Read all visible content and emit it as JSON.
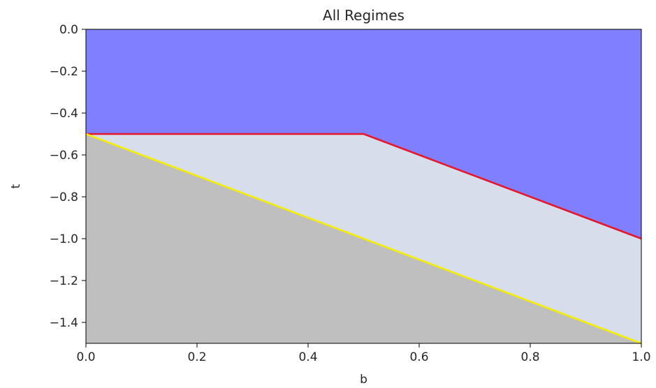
{
  "chart_data": {
    "type": "area",
    "title": "All Regimes",
    "xlabel": "b",
    "ylabel": "t",
    "xlim": [
      0.0,
      1.0
    ],
    "ylim": [
      -1.5,
      0.0
    ],
    "xticks": [
      "0.0",
      "0.2",
      "0.4",
      "0.6",
      "0.8",
      "1.0"
    ],
    "yticks": [
      "0.0",
      "−0.2",
      "−0.4",
      "−0.6",
      "−0.8",
      "−1.0",
      "−1.2",
      "−1.4"
    ],
    "grid": false,
    "boundaries": [
      {
        "color": "#e8162b",
        "x": [
          0.0,
          0.5,
          1.0
        ],
        "y": [
          -0.5,
          -0.5,
          -1.0
        ]
      },
      {
        "color": "#f5ee00",
        "x": [
          0.0,
          1.0
        ],
        "y": [
          -0.5,
          -1.5
        ]
      }
    ],
    "regions": [
      {
        "color": "#7f7fff"
      },
      {
        "color": "#d6deeb"
      },
      {
        "color": "#bfbfbf"
      }
    ]
  }
}
